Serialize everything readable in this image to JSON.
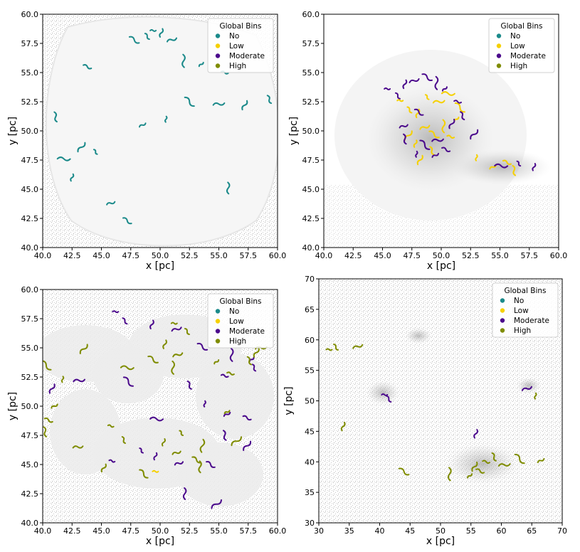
{
  "legend_title": "Global Bins",
  "legend_entries": [
    {
      "label": "No",
      "color": "#1b8a8a"
    },
    {
      "label": "Low",
      "color": "#f5d000"
    },
    {
      "label": "Moderate",
      "color": "#4b0a8c"
    },
    {
      "label": "High",
      "color": "#7f8c00"
    }
  ],
  "chart_data": [
    {
      "type": "scatter",
      "xlabel": "x [pc]",
      "ylabel": "y [pc]",
      "xlim": [
        40.0,
        60.0
      ],
      "ylim": [
        40.0,
        60.0
      ],
      "xticks": [
        "40.0",
        "42.5",
        "45.0",
        "47.5",
        "50.0",
        "52.5",
        "55.0",
        "57.5",
        "60.0"
      ],
      "yticks": [
        "40.0",
        "42.5",
        "45.0",
        "47.5",
        "50.0",
        "52.5",
        "55.0",
        "57.5",
        "60.0"
      ],
      "legend": "top-right",
      "series": [
        {
          "name": "No",
          "points": [
            [
              49.4,
              58.6
            ],
            [
              48.9,
              58.1
            ],
            [
              50.1,
              58.4
            ],
            [
              51.0,
              57.8
            ],
            [
              47.8,
              57.8
            ],
            [
              52.0,
              56.0
            ],
            [
              53.5,
              55.7
            ],
            [
              55.5,
              55.0
            ],
            [
              59.3,
              52.7
            ],
            [
              57.2,
              52.2
            ],
            [
              55.0,
              52.3
            ],
            [
              52.5,
              52.5
            ],
            [
              50.5,
              51.0
            ],
            [
              48.5,
              50.5
            ],
            [
              43.8,
              55.5
            ],
            [
              41.1,
              51.2
            ],
            [
              43.3,
              48.6
            ],
            [
              41.8,
              47.6
            ],
            [
              44.5,
              48.2
            ],
            [
              42.5,
              46.0
            ],
            [
              45.8,
              43.8
            ],
            [
              47.2,
              42.3
            ],
            [
              55.8,
              45.1
            ]
          ]
        },
        {
          "name": "Low",
          "points": []
        },
        {
          "name": "Moderate",
          "points": []
        },
        {
          "name": "High",
          "points": []
        }
      ]
    },
    {
      "type": "scatter",
      "xlabel": "x [pc]",
      "ylabel": "y [pc]",
      "xlim": [
        40.0,
        60.0
      ],
      "ylim": [
        40.0,
        60.0
      ],
      "xticks": [
        "40.0",
        "42.5",
        "45.0",
        "47.5",
        "50.0",
        "52.5",
        "55.0",
        "57.5",
        "60.0"
      ],
      "yticks": [
        "40.0",
        "42.5",
        "45.0",
        "47.5",
        "50.0",
        "52.5",
        "55.0",
        "57.5",
        "60.0"
      ],
      "legend": "top-right",
      "series": [
        {
          "name": "No",
          "points": []
        },
        {
          "name": "Low",
          "points": [
            [
              46.5,
              52.6
            ],
            [
              47.3,
              51.8
            ],
            [
              48.0,
              51.5
            ],
            [
              48.6,
              50.3
            ],
            [
              49.4,
              49.7
            ],
            [
              50.2,
              50.4
            ],
            [
              51.3,
              51.0
            ],
            [
              50.8,
              49.5
            ],
            [
              49.2,
              48.3
            ],
            [
              48.2,
              47.5
            ],
            [
              49.8,
              52.5
            ],
            [
              51.6,
              52.0
            ],
            [
              53.0,
              47.7
            ],
            [
              54.4,
              46.9
            ],
            [
              55.6,
              47.3
            ],
            [
              56.2,
              46.6
            ],
            [
              47.2,
              49.6
            ],
            [
              50.6,
              53.2
            ],
            [
              48.8,
              52.9
            ],
            [
              47.8,
              48.9
            ]
          ]
        },
        {
          "name": "Moderate",
          "points": [
            [
              45.4,
              53.6
            ],
            [
              46.3,
              53.0
            ],
            [
              46.9,
              54.0
            ],
            [
              47.7,
              54.3
            ],
            [
              48.8,
              54.6
            ],
            [
              49.6,
              54.1
            ],
            [
              50.3,
              53.6
            ],
            [
              51.4,
              52.5
            ],
            [
              51.8,
              51.3
            ],
            [
              50.9,
              50.6
            ],
            [
              49.7,
              49.2
            ],
            [
              48.6,
              48.8
            ],
            [
              47.9,
              48.0
            ],
            [
              49.5,
              47.9
            ],
            [
              50.4,
              48.4
            ],
            [
              46.9,
              49.3
            ],
            [
              52.8,
              49.7
            ],
            [
              55.1,
              47.0
            ],
            [
              56.6,
              47.2
            ],
            [
              57.9,
              46.9
            ],
            [
              46.8,
              50.4
            ],
            [
              48.1,
              51.6
            ]
          ]
        },
        {
          "name": "High",
          "points": []
        }
      ]
    },
    {
      "type": "scatter",
      "xlabel": "x [pc]",
      "ylabel": "y [pc]",
      "xlim": [
        40.0,
        60.0
      ],
      "ylim": [
        40.0,
        60.0
      ],
      "xticks": [
        "40.0",
        "42.5",
        "45.0",
        "47.5",
        "50.0",
        "52.5",
        "55.0",
        "57.5",
        "60.0"
      ],
      "yticks": [
        "40.0",
        "42.5",
        "45.0",
        "47.5",
        "50.0",
        "52.5",
        "55.0",
        "57.5",
        "60.0"
      ],
      "legend": "top-right",
      "series": [
        {
          "name": "No",
          "points": []
        },
        {
          "name": "Low",
          "points": [
            [
              49.6,
              44.4
            ]
          ]
        },
        {
          "name": "Moderate",
          "points": [
            [
              46.2,
              58.1
            ],
            [
              47.0,
              57.3
            ],
            [
              49.3,
              57.0
            ],
            [
              51.4,
              56.6
            ],
            [
              53.6,
              55.1
            ],
            [
              56.1,
              54.4
            ],
            [
              57.8,
              54.0
            ],
            [
              55.5,
              52.6
            ],
            [
              52.5,
              51.8
            ],
            [
              40.8,
              51.5
            ],
            [
              43.1,
              52.2
            ],
            [
              47.3,
              52.1
            ],
            [
              53.8,
              50.2
            ],
            [
              55.7,
              49.3
            ],
            [
              57.4,
              49.0
            ],
            [
              55.5,
              47.5
            ],
            [
              57.4,
              46.6
            ],
            [
              49.7,
              48.9
            ],
            [
              48.4,
              46.2
            ],
            [
              49.6,
              45.7
            ],
            [
              51.6,
              45.1
            ],
            [
              54.3,
              45.0
            ],
            [
              52.1,
              42.5
            ],
            [
              54.8,
              41.6
            ],
            [
              45.9,
              45.3
            ],
            [
              58.0,
              53.3
            ]
          ]
        },
        {
          "name": "High",
          "points": [
            [
              51.2,
              57.1
            ],
            [
              52.3,
              56.4
            ],
            [
              50.4,
              55.3
            ],
            [
              51.5,
              54.4
            ],
            [
              49.4,
              54.0
            ],
            [
              51.1,
              53.3
            ],
            [
              54.8,
              53.8
            ],
            [
              56.0,
              52.8
            ],
            [
              57.6,
              53.9
            ],
            [
              58.2,
              54.6
            ],
            [
              58.6,
              55.0
            ],
            [
              40.3,
              53.5
            ],
            [
              41.7,
              52.3
            ],
            [
              41.0,
              50.0
            ],
            [
              40.5,
              48.8
            ],
            [
              40.2,
              47.8
            ],
            [
              43.5,
              54.9
            ],
            [
              47.2,
              53.3
            ],
            [
              51.8,
              47.7
            ],
            [
              50.3,
              46.9
            ],
            [
              51.4,
              46.0
            ],
            [
              53.1,
              45.4
            ],
            [
              53.4,
              44.8
            ],
            [
              56.5,
              47.0
            ],
            [
              45.8,
              48.3
            ],
            [
              46.9,
              47.1
            ],
            [
              45.2,
              44.7
            ],
            [
              43.0,
              46.5
            ],
            [
              48.6,
              44.2
            ],
            [
              53.6,
              46.6
            ],
            [
              55.7,
              49.5
            ]
          ]
        }
      ]
    },
    {
      "type": "scatter",
      "xlabel": "x [pc]",
      "ylabel": "y [pc]",
      "xlim": [
        30,
        70
      ],
      "ylim": [
        30,
        70
      ],
      "xticks": [
        "30",
        "35",
        "40",
        "45",
        "50",
        "55",
        "60",
        "65",
        "70"
      ],
      "yticks": [
        "30",
        "35",
        "40",
        "45",
        "50",
        "55",
        "60",
        "65",
        "70"
      ],
      "legend": "top-right",
      "series": [
        {
          "name": "No",
          "points": []
        },
        {
          "name": "Low",
          "points": []
        },
        {
          "name": "Moderate",
          "points": [
            [
              40.8,
              51.0
            ],
            [
              41.5,
              50.3
            ],
            [
              55.8,
              44.6
            ],
            [
              64.2,
              52.0
            ]
          ]
        },
        {
          "name": "High",
          "points": [
            [
              31.7,
              58.4
            ],
            [
              32.8,
              58.8
            ],
            [
              34.0,
              45.8
            ],
            [
              36.4,
              58.9
            ],
            [
              44.0,
              38.4
            ],
            [
              51.5,
              38.0
            ],
            [
              54.8,
              37.7
            ],
            [
              57.5,
              40.0
            ],
            [
              58.8,
              40.8
            ],
            [
              55.6,
              39.2
            ],
            [
              60.5,
              39.5
            ],
            [
              63.0,
              40.5
            ],
            [
              65.6,
              50.8
            ],
            [
              66.5,
              40.2
            ],
            [
              56.5,
              38.5
            ]
          ]
        }
      ]
    }
  ]
}
